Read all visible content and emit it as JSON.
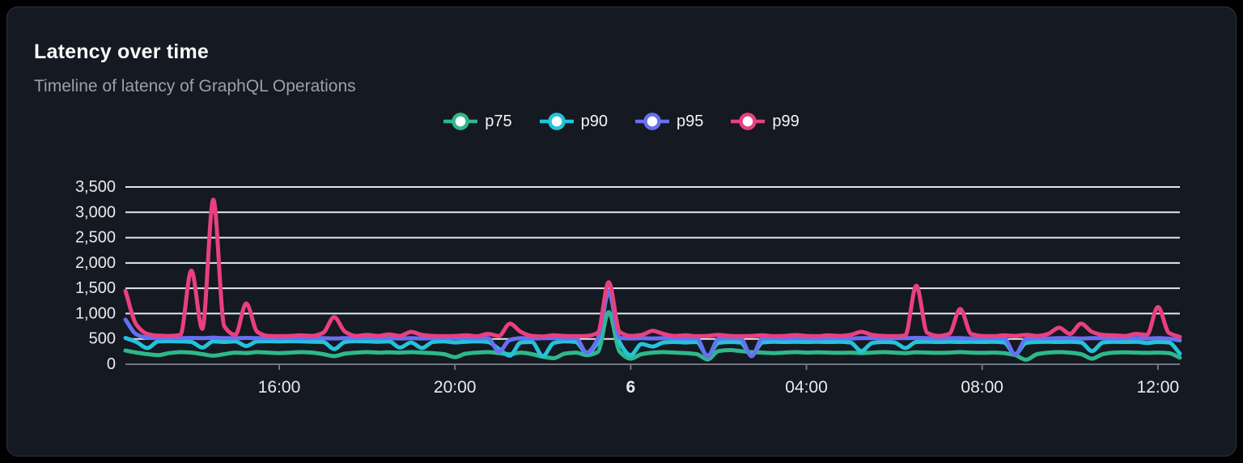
{
  "card": {
    "title": "Latency over time",
    "subtitle": "Timeline of latency of GraphQL Operations"
  },
  "colors": {
    "background": "#151921",
    "border": "#2c313b",
    "title_text": "#fafbfc",
    "subtitle_text": "#9aa1ab",
    "gridline": "#e3e7ee",
    "axis": "#6f7680",
    "tick_label": "#e9ebee",
    "legend_text": "#f4f5f7",
    "legend_marker_fill": "#ffffff"
  },
  "chart_data": {
    "type": "line",
    "title": "Latency over time",
    "xlabel": "",
    "ylabel": "",
    "grid": "horizontal",
    "legend_position": "top-center",
    "ylim": [
      0,
      3500
    ],
    "y_ticks": [
      0,
      500,
      1000,
      1500,
      2000,
      2500,
      3000,
      3500
    ],
    "y_tick_labels": [
      "0",
      "500",
      "1,000",
      "1,500",
      "2,000",
      "2,500",
      "3,000",
      "3,500"
    ],
    "x_range_hours": [
      0,
      24
    ],
    "x_step_hours": 0.25,
    "x_ticks": [
      {
        "label": "16:00",
        "hours": 3.5,
        "bold": false
      },
      {
        "label": "20:00",
        "hours": 7.5,
        "bold": false
      },
      {
        "label": "6",
        "hours": 11.5,
        "bold": true
      },
      {
        "label": "04:00",
        "hours": 15.5,
        "bold": false
      },
      {
        "label": "08:00",
        "hours": 19.5,
        "bold": false
      },
      {
        "label": "12:00",
        "hours": 23.5,
        "bold": false
      }
    ],
    "series": [
      {
        "name": "p75",
        "color": "#2eb88a",
        "values": [
          270,
          230,
          200,
          180,
          220,
          240,
          230,
          200,
          170,
          200,
          230,
          220,
          240,
          230,
          220,
          230,
          240,
          230,
          200,
          160,
          210,
          230,
          240,
          230,
          235,
          230,
          240,
          230,
          220,
          200,
          140,
          210,
          230,
          240,
          220,
          200,
          230,
          200,
          150,
          120,
          210,
          230,
          180,
          240,
          1030,
          250,
          110,
          200,
          230,
          240,
          230,
          220,
          200,
          95,
          260,
          280,
          260,
          240,
          230,
          220,
          230,
          240,
          230,
          235,
          230,
          225,
          230,
          220,
          230,
          240,
          230,
          220,
          235,
          230,
          225,
          230,
          240,
          230,
          225,
          230,
          220,
          180,
          90,
          200,
          230,
          240,
          230,
          200,
          110,
          200,
          230,
          235,
          230,
          225,
          230,
          220,
          130
        ]
      },
      {
        "name": "p90",
        "color": "#24c3da",
        "values": [
          520,
          440,
          320,
          450,
          455,
          450,
          440,
          330,
          450,
          440,
          450,
          360,
          450,
          455,
          450,
          455,
          450,
          445,
          440,
          300,
          440,
          455,
          450,
          445,
          450,
          330,
          430,
          320,
          440,
          450,
          430,
          445,
          450,
          440,
          300,
          170,
          430,
          440,
          160,
          420,
          450,
          440,
          220,
          430,
          1430,
          430,
          180,
          400,
          350,
          430,
          440,
          430,
          440,
          170,
          420,
          440,
          430,
          180,
          430,
          445,
          440,
          445,
          440,
          445,
          440,
          445,
          430,
          260,
          420,
          440,
          430,
          320,
          440,
          445,
          440,
          445,
          440,
          445,
          440,
          445,
          430,
          200,
          420,
          440,
          445,
          440,
          445,
          430,
          260,
          430,
          445,
          440,
          445,
          420,
          440,
          430,
          210
        ]
      },
      {
        "name": "p95",
        "color": "#6670f1",
        "values": [
          880,
          590,
          525,
          515,
          520,
          515,
          520,
          515,
          525,
          515,
          515,
          520,
          515,
          515,
          515,
          520,
          515,
          515,
          515,
          510,
          515,
          515,
          520,
          515,
          515,
          510,
          515,
          510,
          515,
          515,
          515,
          515,
          510,
          515,
          250,
          480,
          515,
          510,
          515,
          515,
          510,
          515,
          230,
          500,
          1450,
          520,
          510,
          515,
          510,
          515,
          515,
          510,
          515,
          150,
          500,
          515,
          510,
          160,
          505,
          515,
          510,
          515,
          515,
          510,
          515,
          515,
          510,
          515,
          515,
          510,
          515,
          515,
          520,
          515,
          510,
          515,
          515,
          510,
          515,
          515,
          510,
          190,
          500,
          515,
          510,
          515,
          515,
          510,
          515,
          515,
          510,
          515,
          515,
          510,
          515,
          505,
          470
        ]
      },
      {
        "name": "p99",
        "color": "#e8407f",
        "values": [
          1450,
          780,
          600,
          565,
          560,
          580,
          1850,
          700,
          3250,
          750,
          580,
          1200,
          640,
          560,
          555,
          560,
          570,
          560,
          620,
          930,
          640,
          560,
          580,
          560,
          590,
          560,
          640,
          580,
          560,
          555,
          560,
          570,
          555,
          600,
          560,
          800,
          640,
          560,
          550,
          570,
          560,
          555,
          560,
          620,
          1620,
          640,
          560,
          580,
          660,
          600,
          560,
          570,
          555,
          560,
          580,
          560,
          555,
          560,
          570,
          555,
          560,
          575,
          560,
          555,
          570,
          560,
          580,
          640,
          580,
          560,
          555,
          570,
          1550,
          620,
          560,
          600,
          1090,
          600,
          560,
          555,
          570,
          560,
          580,
          560,
          600,
          720,
          600,
          800,
          640,
          580,
          570,
          560,
          600,
          580,
          1130,
          620,
          540
        ]
      }
    ]
  }
}
